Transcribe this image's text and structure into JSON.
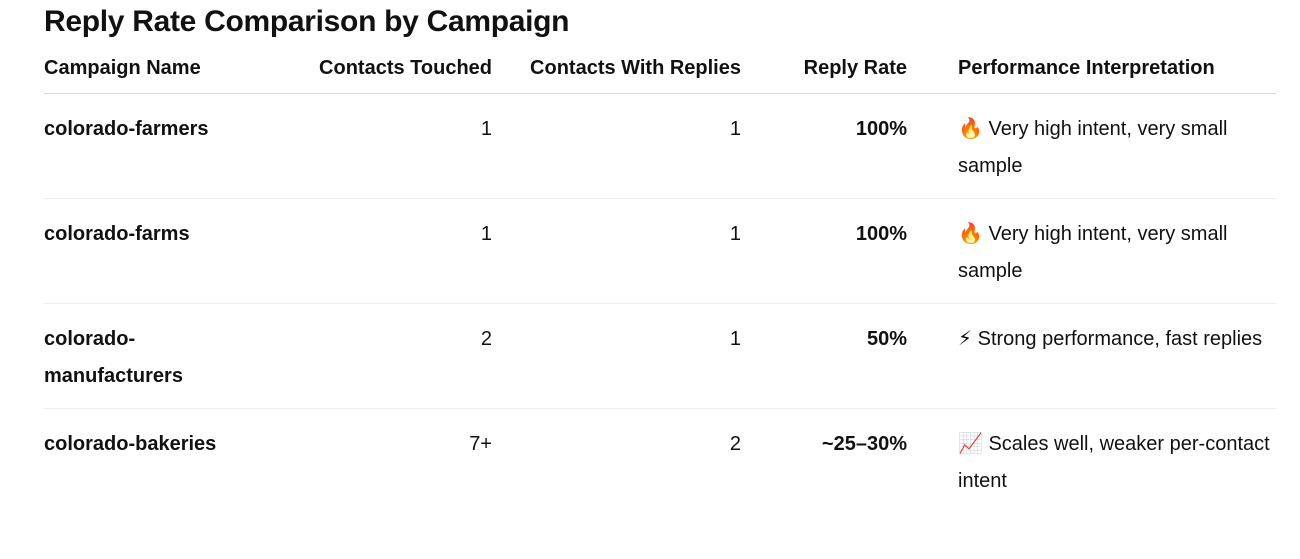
{
  "title": "Reply Rate Comparison by Campaign",
  "table": {
    "columns": [
      "Campaign Name",
      "Contacts Touched",
      "Contacts With Replies",
      "Reply Rate",
      "Performance Interpretation"
    ],
    "rows": [
      [
        "colorado-farmers",
        "1",
        "1",
        "100%",
        "🔥 Very high intent, very small sample"
      ],
      [
        "colorado-farms",
        "1",
        "1",
        "100%",
        "🔥 Very high intent, very small sample"
      ],
      [
        "colorado-manufacturers",
        "2",
        "1",
        "50%",
        "⚡ Strong performance, fast replies"
      ],
      [
        "colorado-bakeries",
        "7+",
        "2",
        "~25–30%",
        "📈 Scales well, weaker per-contact intent"
      ]
    ]
  }
}
